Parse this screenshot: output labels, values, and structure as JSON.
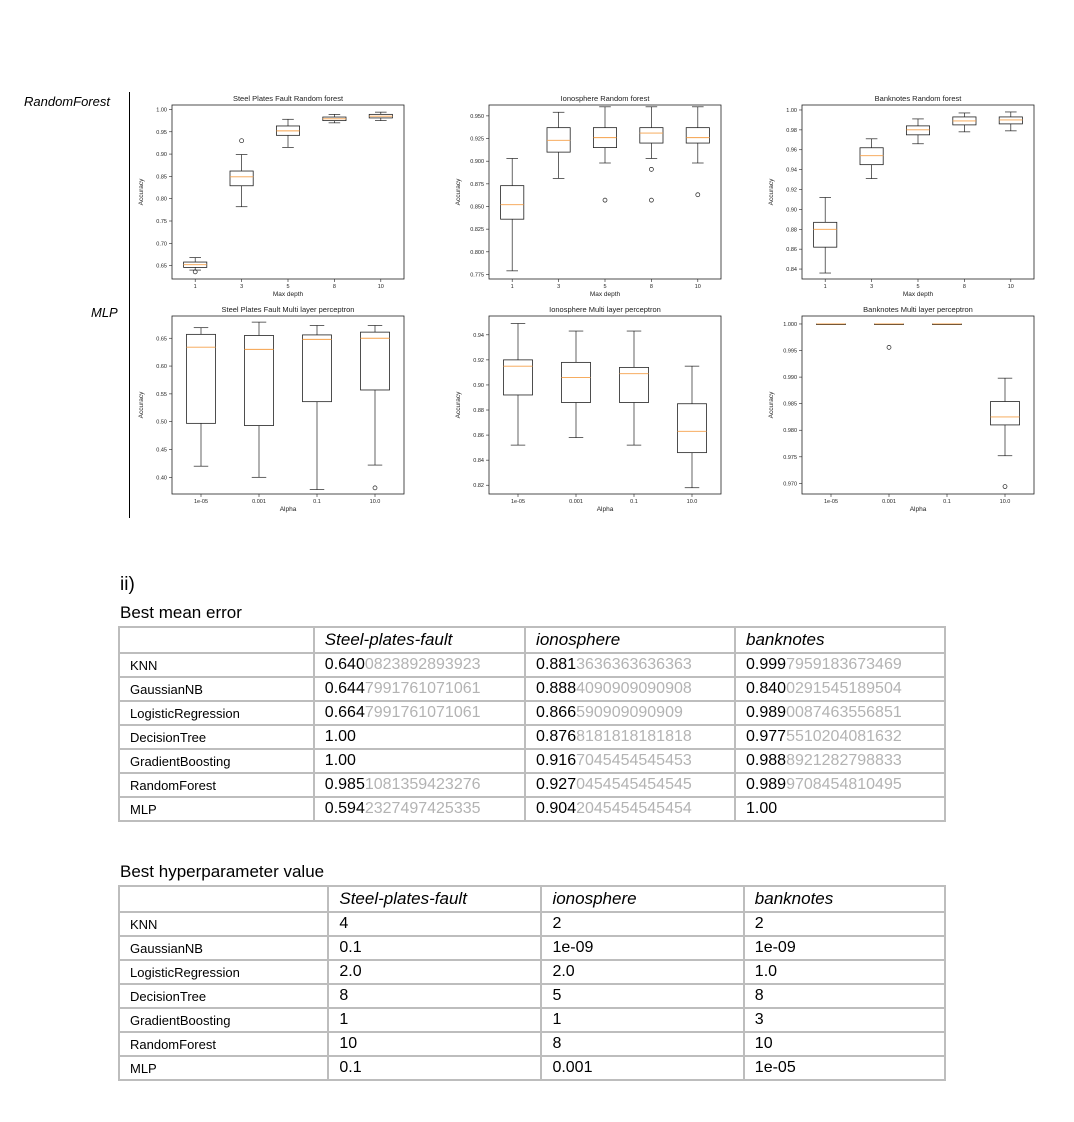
{
  "row_labels": [
    "RandomForest",
    "MLP"
  ],
  "section_label": "ii)",
  "chart_data": [
    {
      "type": "boxplot",
      "title": "Steel Plates Fault Random forest",
      "xlabel": "Max depth",
      "ylabel": "Accuracy",
      "categories": [
        "1",
        "3",
        "5",
        "8",
        "10"
      ],
      "ylim": [
        0.62,
        1.01
      ],
      "yticks": [
        0.65,
        0.7,
        0.75,
        0.8,
        0.85,
        0.9,
        0.95,
        1.0
      ],
      "ytick_labels": [
        "0.65",
        "0.70",
        "0.75",
        "0.80",
        "0.85",
        "0.90",
        "0.95",
        "1.00"
      ],
      "boxes": [
        {
          "whislo": 0.64,
          "q1": 0.646,
          "med": 0.652,
          "q3": 0.658,
          "whishi": 0.668,
          "fliers": [
            0.636
          ]
        },
        {
          "whislo": 0.782,
          "q1": 0.829,
          "med": 0.849,
          "q3": 0.862,
          "whishi": 0.899,
          "fliers": [
            0.93
          ]
        },
        {
          "whislo": 0.915,
          "q1": 0.942,
          "med": 0.952,
          "q3": 0.963,
          "whishi": 0.978,
          "fliers": []
        },
        {
          "whislo": 0.97,
          "q1": 0.975,
          "med": 0.979,
          "q3": 0.983,
          "whishi": 0.989,
          "fliers": []
        },
        {
          "whislo": 0.975,
          "q1": 0.981,
          "med": 0.985,
          "q3": 0.989,
          "whishi": 0.994,
          "fliers": []
        }
      ]
    },
    {
      "type": "boxplot",
      "title": "Ionosphere Random forest",
      "xlabel": "Max depth",
      "ylabel": "Accuracy",
      "categories": [
        "1",
        "3",
        "5",
        "8",
        "10"
      ],
      "ylim": [
        0.77,
        0.962
      ],
      "yticks": [
        0.775,
        0.8,
        0.825,
        0.85,
        0.875,
        0.9,
        0.925,
        0.95
      ],
      "ytick_labels": [
        "0.775",
        "0.800",
        "0.825",
        "0.850",
        "0.875",
        "0.900",
        "0.925",
        "0.950"
      ],
      "boxes": [
        {
          "whislo": 0.779,
          "q1": 0.836,
          "med": 0.852,
          "q3": 0.873,
          "whishi": 0.903,
          "fliers": []
        },
        {
          "whislo": 0.881,
          "q1": 0.91,
          "med": 0.923,
          "q3": 0.937,
          "whishi": 0.954,
          "fliers": []
        },
        {
          "whislo": 0.898,
          "q1": 0.915,
          "med": 0.926,
          "q3": 0.937,
          "whishi": 0.96,
          "fliers": [
            0.857
          ]
        },
        {
          "whislo": 0.903,
          "q1": 0.92,
          "med": 0.931,
          "q3": 0.937,
          "whishi": 0.96,
          "fliers": [
            0.891,
            0.857
          ]
        },
        {
          "whislo": 0.898,
          "q1": 0.92,
          "med": 0.926,
          "q3": 0.937,
          "whishi": 0.96,
          "fliers": [
            0.863
          ]
        }
      ]
    },
    {
      "type": "boxplot",
      "title": "Banknotes Random forest",
      "xlabel": "Max depth",
      "ylabel": "Accuracy",
      "categories": [
        "1",
        "3",
        "5",
        "8",
        "10"
      ],
      "ylim": [
        0.83,
        1.005
      ],
      "yticks": [
        0.84,
        0.86,
        0.88,
        0.9,
        0.92,
        0.94,
        0.96,
        0.98,
        1.0
      ],
      "ytick_labels": [
        "0.84",
        "0.86",
        "0.88",
        "0.90",
        "0.92",
        "0.94",
        "0.96",
        "0.98",
        "1.00"
      ],
      "boxes": [
        {
          "whislo": 0.836,
          "q1": 0.862,
          "med": 0.88,
          "q3": 0.887,
          "whishi": 0.912,
          "fliers": []
        },
        {
          "whislo": 0.931,
          "q1": 0.945,
          "med": 0.954,
          "q3": 0.962,
          "whishi": 0.971,
          "fliers": []
        },
        {
          "whislo": 0.966,
          "q1": 0.975,
          "med": 0.98,
          "q3": 0.984,
          "whishi": 0.991,
          "fliers": []
        },
        {
          "whislo": 0.978,
          "q1": 0.985,
          "med": 0.989,
          "q3": 0.993,
          "whishi": 0.997,
          "fliers": []
        },
        {
          "whislo": 0.979,
          "q1": 0.986,
          "med": 0.99,
          "q3": 0.993,
          "whishi": 0.998,
          "fliers": []
        }
      ]
    },
    {
      "type": "boxplot",
      "title": "Steel Plates Fault Multi layer perceptron",
      "xlabel": "Alpha",
      "ylabel": "Accuracy",
      "categories": [
        "1e-05",
        "0.001",
        "0.1",
        "10.0"
      ],
      "ylim": [
        0.37,
        0.69
      ],
      "yticks": [
        0.4,
        0.45,
        0.5,
        0.55,
        0.6,
        0.65
      ],
      "ytick_labels": [
        "0.40",
        "0.45",
        "0.50",
        "0.55",
        "0.60",
        "0.65"
      ],
      "boxes": [
        {
          "whislo": 0.42,
          "q1": 0.497,
          "med": 0.634,
          "q3": 0.657,
          "whishi": 0.669,
          "fliers": []
        },
        {
          "whislo": 0.4,
          "q1": 0.493,
          "med": 0.63,
          "q3": 0.655,
          "whishi": 0.679,
          "fliers": []
        },
        {
          "whislo": 0.378,
          "q1": 0.536,
          "med": 0.648,
          "q3": 0.656,
          "whishi": 0.673,
          "fliers": []
        },
        {
          "whislo": 0.422,
          "q1": 0.557,
          "med": 0.65,
          "q3": 0.661,
          "whishi": 0.673,
          "fliers": [
            0.381
          ]
        }
      ]
    },
    {
      "type": "boxplot",
      "title": "Ionosphere Multi layer perceptron",
      "xlabel": "Alpha",
      "ylabel": "Accuracy",
      "categories": [
        "1e-05",
        "0.001",
        "0.1",
        "10.0"
      ],
      "ylim": [
        0.813,
        0.955
      ],
      "yticks": [
        0.82,
        0.84,
        0.86,
        0.88,
        0.9,
        0.92,
        0.94
      ],
      "ytick_labels": [
        "0.82",
        "0.84",
        "0.86",
        "0.88",
        "0.90",
        "0.92",
        "0.94"
      ],
      "boxes": [
        {
          "whislo": 0.852,
          "q1": 0.892,
          "med": 0.915,
          "q3": 0.92,
          "whishi": 0.949,
          "fliers": []
        },
        {
          "whislo": 0.858,
          "q1": 0.886,
          "med": 0.906,
          "q3": 0.918,
          "whishi": 0.943,
          "fliers": []
        },
        {
          "whislo": 0.852,
          "q1": 0.886,
          "med": 0.909,
          "q3": 0.914,
          "whishi": 0.943,
          "fliers": []
        },
        {
          "whislo": 0.818,
          "q1": 0.846,
          "med": 0.863,
          "q3": 0.885,
          "whishi": 0.915,
          "fliers": []
        }
      ]
    },
    {
      "type": "boxplot",
      "title": "Banknotes Multi layer perceptron",
      "xlabel": "Alpha",
      "ylabel": "Accuracy",
      "categories": [
        "1e-05",
        "0.001",
        "0.1",
        "10.0"
      ],
      "ylim": [
        0.968,
        1.0015
      ],
      "yticks": [
        0.97,
        0.975,
        0.98,
        0.985,
        0.99,
        0.995,
        1.0
      ],
      "ytick_labels": [
        "0.970",
        "0.975",
        "0.980",
        "0.985",
        "0.990",
        "0.995",
        "1.000"
      ],
      "boxes": [
        {
          "whislo": 1.0,
          "q1": 1.0,
          "med": 1.0,
          "q3": 1.0,
          "whishi": 1.0,
          "fliers": []
        },
        {
          "whislo": 1.0,
          "q1": 1.0,
          "med": 1.0,
          "q3": 1.0,
          "whishi": 1.0,
          "fliers": [
            0.9956
          ]
        },
        {
          "whislo": 1.0,
          "q1": 1.0,
          "med": 1.0,
          "q3": 1.0,
          "whishi": 1.0,
          "fliers": []
        },
        {
          "whislo": 0.9752,
          "q1": 0.981,
          "med": 0.9825,
          "q3": 0.9854,
          "whishi": 0.9898,
          "fliers": [
            0.9694
          ]
        }
      ]
    }
  ],
  "tables": {
    "mean_error": {
      "title": "Best mean error",
      "columns": [
        "",
        "Steel-plates-fault",
        "ionosphere",
        "banknotes"
      ],
      "rows": [
        {
          "label": "KNN",
          "cells": [
            {
              "main": "0.640",
              "rest": "0823892893923"
            },
            {
              "main": "0.881",
              "rest": "3636363636363"
            },
            {
              "main": "0.999",
              "rest": "7959183673469"
            }
          ]
        },
        {
          "label": "GaussianNB",
          "cells": [
            {
              "main": "0.644",
              "rest": "7991761071061"
            },
            {
              "main": "0.888",
              "rest": "4090909090908"
            },
            {
              "main": "0.840",
              "rest": "0291545189504"
            }
          ]
        },
        {
          "label": "LogisticRegression",
          "cells": [
            {
              "main": "0.664",
              "rest": "7991761071061"
            },
            {
              "main": "0.866",
              "rest": "590909090909"
            },
            {
              "main": "0.989",
              "rest": "0087463556851"
            }
          ]
        },
        {
          "label": "DecisionTree",
          "cells": [
            {
              "main": "1.00",
              "rest": ""
            },
            {
              "main": "0.876",
              "rest": "8181818181818"
            },
            {
              "main": "0.977",
              "rest": "5510204081632"
            }
          ]
        },
        {
          "label": "GradientBoosting",
          "cells": [
            {
              "main": "1.00",
              "rest": ""
            },
            {
              "main": "0.916",
              "rest": "7045454545453"
            },
            {
              "main": "0.988",
              "rest": "8921282798833"
            }
          ]
        },
        {
          "label": "RandomForest",
          "cells": [
            {
              "main": "0.985",
              "rest": "1081359423276"
            },
            {
              "main": "0.927",
              "rest": "0454545454545"
            },
            {
              "main": "0.989",
              "rest": "9708454810495"
            }
          ]
        },
        {
          "label": "MLP",
          "cells": [
            {
              "main": "0.594",
              "rest": "2327497425335"
            },
            {
              "main": "0.904",
              "rest": "2045454545454"
            },
            {
              "main": "1.00",
              "rest": ""
            }
          ]
        }
      ]
    },
    "hyperparam": {
      "title": "Best hyperparameter value",
      "columns": [
        "",
        "Steel-plates-fault",
        "ionosphere",
        "banknotes"
      ],
      "rows": [
        {
          "label": "KNN",
          "cells": [
            {
              "main": "4",
              "rest": ""
            },
            {
              "main": "2",
              "rest": ""
            },
            {
              "main": "2",
              "rest": ""
            }
          ]
        },
        {
          "label": "GaussianNB",
          "cells": [
            {
              "main": "0.1",
              "rest": ""
            },
            {
              "main": "1e-09",
              "rest": ""
            },
            {
              "main": "1e-09",
              "rest": ""
            }
          ]
        },
        {
          "label": "LogisticRegression",
          "cells": [
            {
              "main": "2.0",
              "rest": ""
            },
            {
              "main": "2.0",
              "rest": ""
            },
            {
              "main": "1.0",
              "rest": ""
            }
          ]
        },
        {
          "label": "DecisionTree",
          "cells": [
            {
              "main": "8",
              "rest": ""
            },
            {
              "main": "5",
              "rest": ""
            },
            {
              "main": "8",
              "rest": ""
            }
          ]
        },
        {
          "label": "GradientBoosting",
          "cells": [
            {
              "main": "1",
              "rest": ""
            },
            {
              "main": "1",
              "rest": ""
            },
            {
              "main": "3",
              "rest": ""
            }
          ]
        },
        {
          "label": "RandomForest",
          "cells": [
            {
              "main": "10",
              "rest": ""
            },
            {
              "main": "8",
              "rest": ""
            },
            {
              "main": "10",
              "rest": ""
            }
          ]
        },
        {
          "label": "MLP",
          "cells": [
            {
              "main": "0.1",
              "rest": ""
            },
            {
              "main": "0.001",
              "rest": ""
            },
            {
              "main": "1e-05",
              "rest": ""
            }
          ]
        }
      ]
    }
  }
}
